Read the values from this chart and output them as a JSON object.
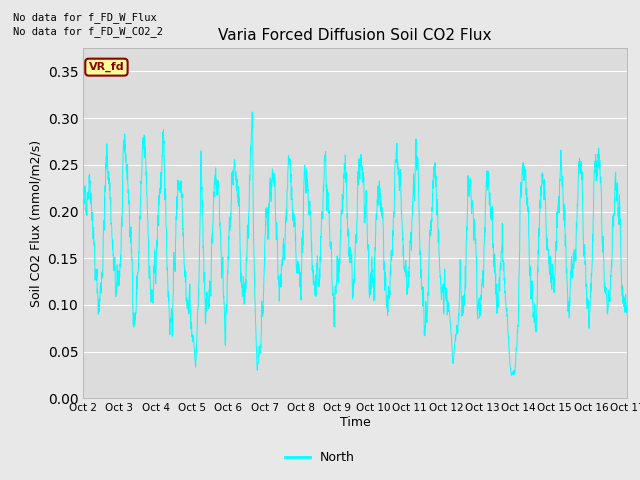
{
  "title": "Varia Forced Diffusion Soil CO2 Flux",
  "xlabel": "Time",
  "ylabel": "Soil CO2 Flux (mmol/m2/s)",
  "ylim": [
    0.0,
    0.375
  ],
  "yticks": [
    0.0,
    0.05,
    0.1,
    0.15,
    0.2,
    0.25,
    0.3,
    0.35
  ],
  "xtick_labels": [
    "Oct 2",
    "Oct 3",
    "Oct 4",
    "Oct 5",
    "Oct 6",
    "Oct 7",
    "Oct 8",
    "Oct 9",
    "Oct 10",
    "Oct 11",
    "Oct 12",
    "Oct 13",
    "Oct 14",
    "Oct 15",
    "Oct 16",
    "Oct 17"
  ],
  "no_data_text1": "No data for f_FD_W_Flux",
  "no_data_text2": "No data for f_FD_W_CO2_2",
  "legend_label": "North",
  "line_color": "#00FFFF",
  "line_width": 0.7,
  "bg_color": "#E8E8E8",
  "plot_bg_color": "#DCDCDC",
  "vr_fd_label": "VR_fd",
  "vr_fd_bg": "#FFFF99",
  "vr_fd_border": "#8B0000",
  "vr_fd_text_color": "#8B0000",
  "seed": 42,
  "n_points": 2880
}
